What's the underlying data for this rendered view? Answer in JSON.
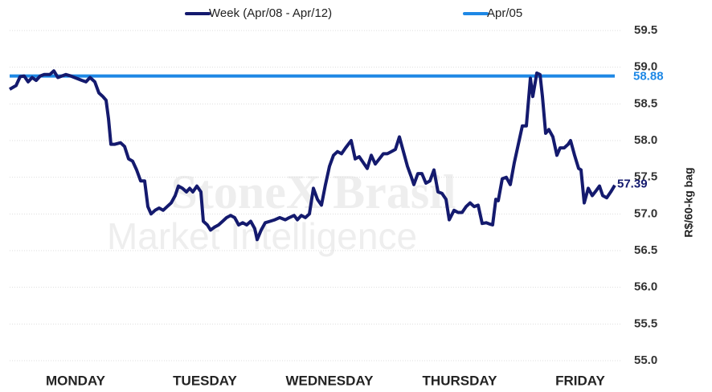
{
  "chart_data": {
    "type": "line",
    "watermark": {
      "line1": "StoneX Brasil",
      "line2": "Market Intelligence"
    },
    "y_axis_label": "R$/60-kg bag",
    "xlim": [
      12,
      765
    ],
    "xticks": [
      {
        "value": 94,
        "label": "MONDAY"
      },
      {
        "value": 255,
        "label": "TUESDAY"
      },
      {
        "value": 410,
        "label": "WEDNESDAY"
      },
      {
        "value": 572,
        "label": "THURSDAY"
      },
      {
        "value": 722,
        "label": "FRIDAY"
      }
    ],
    "ylim": [
      55,
      59.5
    ],
    "yticks": [
      {
        "value": 55,
        "label": "55.0"
      },
      55.5,
      {
        "value": 56,
        "label": "56.0"
      },
      56.5,
      {
        "value": 57,
        "label": "57.0"
      },
      57.5,
      {
        "value": 58,
        "label": "58.0"
      },
      58.5,
      {
        "value": 59,
        "label": "59.0"
      },
      59.5
    ],
    "grid": true,
    "legend": "top",
    "series": [
      {
        "name": "Week (Apr/08 - Apr/12)",
        "color": "#141a6e",
        "x": [
          12,
          20,
          25,
          30,
          35,
          40,
          45,
          50,
          55,
          62,
          67,
          72,
          77,
          82,
          88,
          95,
          102,
          107,
          112,
          118,
          123,
          128,
          132,
          135,
          138,
          143,
          150,
          155,
          160,
          165,
          170,
          175,
          180,
          184,
          188,
          193,
          198,
          203,
          208,
          213,
          218,
          222,
          227,
          232,
          236,
          240,
          245,
          250,
          253,
          258,
          262,
          267,
          272,
          277,
          282,
          287,
          292,
          297,
          302,
          307,
          312,
          317,
          320,
          325,
          330,
          336,
          342,
          348,
          355,
          360,
          366,
          370,
          375,
          380,
          385,
          390,
          395,
          400,
          405,
          410,
          415,
          420,
          425,
          430,
          437,
          442,
          447,
          452,
          457,
          462,
          467,
          472,
          477,
          482,
          487,
          492,
          497,
          502,
          507,
          512,
          515,
          520,
          525,
          530,
          535,
          540,
          545,
          550,
          555,
          559,
          565,
          570,
          575,
          580,
          585,
          590,
          595,
          600,
          605,
          610,
          613,
          617,
          620,
          625,
          630,
          635,
          640,
          645,
          650,
          655,
          660,
          663,
          668,
          672,
          675,
          679,
          683,
          688,
          693,
          697,
          702,
          707,
          710,
          715,
          720,
          723,
          727,
          732,
          737,
          742,
          746,
          750,
          755,
          760,
          765
        ],
        "values": [
          58.7,
          58.75,
          58.87,
          58.88,
          58.8,
          58.86,
          58.82,
          58.88,
          58.9,
          58.9,
          58.95,
          58.86,
          58.88,
          58.9,
          58.88,
          58.85,
          58.82,
          58.8,
          58.86,
          58.8,
          58.65,
          58.6,
          58.55,
          58.3,
          57.95,
          57.95,
          57.97,
          57.92,
          57.75,
          57.72,
          57.6,
          57.45,
          57.45,
          57.1,
          57.0,
          57.05,
          57.08,
          57.05,
          57.1,
          57.15,
          57.25,
          57.38,
          57.35,
          57.3,
          57.35,
          57.3,
          57.38,
          57.3,
          56.9,
          56.85,
          56.78,
          56.82,
          56.85,
          56.9,
          56.95,
          56.98,
          56.95,
          56.85,
          56.88,
          56.85,
          56.9,
          56.8,
          56.65,
          56.78,
          56.88,
          56.9,
          56.92,
          56.95,
          56.92,
          56.95,
          56.98,
          56.92,
          56.98,
          56.95,
          57.0,
          57.35,
          57.2,
          57.12,
          57.4,
          57.65,
          57.8,
          57.85,
          57.82,
          57.9,
          58.0,
          57.75,
          57.78,
          57.7,
          57.62,
          57.8,
          57.68,
          57.75,
          57.82,
          57.82,
          57.85,
          57.88,
          58.05,
          57.85,
          57.65,
          57.5,
          57.4,
          57.55,
          57.55,
          57.42,
          57.45,
          57.6,
          57.3,
          57.28,
          57.2,
          56.92,
          57.05,
          57.02,
          57.02,
          57.1,
          57.15,
          57.1,
          57.12,
          56.87,
          56.88,
          56.86,
          56.85,
          57.2,
          57.18,
          57.48,
          57.5,
          57.4,
          57.7,
          57.95,
          58.2,
          58.2,
          58.85,
          58.6,
          58.92,
          58.9,
          58.6,
          58.1,
          58.15,
          58.05,
          57.8,
          57.9,
          57.9,
          57.95,
          58.0,
          57.8,
          57.62,
          57.6,
          57.15,
          57.35,
          57.25,
          57.32,
          57.38,
          57.25,
          57.22,
          57.3,
          57.39
        ]
      },
      {
        "name": "Apr/05",
        "color": "#1e88e5",
        "x": [
          12,
          765
        ],
        "values": [
          58.88,
          58.88
        ]
      }
    ]
  }
}
